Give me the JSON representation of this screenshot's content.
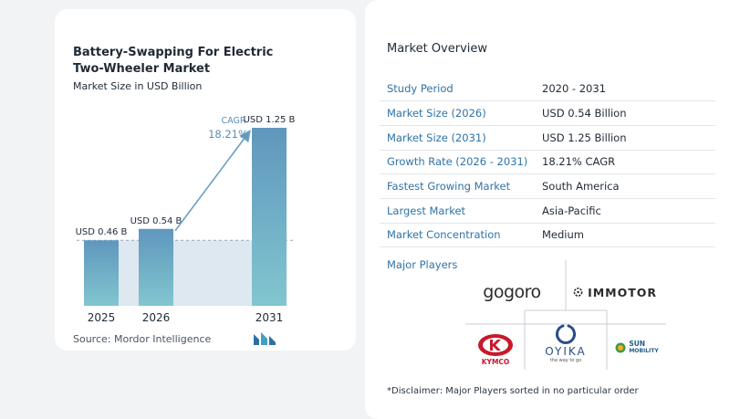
{
  "chart": {
    "title": "Battery-Swapping For Electric Two-Wheeler Market",
    "subtitle": "Market Size in USD Billion",
    "source": "Source: Mordor Intelligence",
    "cagr_label": "CAGR",
    "cagr_value": "18.21%",
    "colors": {
      "bar": "#5f97bd",
      "bar_top": "#6aa0c4",
      "bar_bottom": "#7fc3cf",
      "band": "#dde8f1",
      "arrow": "#6a9fc4",
      "cagr": "#5a8fb8"
    }
  },
  "chart_data": {
    "type": "bar",
    "categories": [
      "2025",
      "2026",
      "2031"
    ],
    "values": [
      0.46,
      0.54,
      1.25
    ],
    "data_labels": [
      "USD 0.46 B",
      "USD 0.54 B",
      "USD 1.25 B"
    ],
    "title": "Battery-Swapping For Electric Two-Wheeler Market",
    "subtitle": "Market Size in USD Billion",
    "xlabel": "",
    "ylabel": "",
    "ylim": [
      0,
      1.25
    ],
    "grid": false,
    "annotations": [
      "CAGR",
      "18.21%"
    ]
  },
  "overview": {
    "title": "Market Overview",
    "rows": [
      {
        "key": "Study Period",
        "value": "2020 - 2031"
      },
      {
        "key": "Market Size (2026)",
        "value": "USD 0.54 Billion"
      },
      {
        "key": "Market Size (2031)",
        "value": "USD 1.25 Billion"
      },
      {
        "key": "Growth Rate (2026 - 2031)",
        "value": "18.21% CAGR"
      },
      {
        "key": "Fastest Growing Market",
        "value": "South America"
      },
      {
        "key": "Largest Market",
        "value": "Asia-Pacific"
      },
      {
        "key": "Market Concentration",
        "value": "Medium"
      }
    ]
  },
  "players": {
    "title": "Major Players",
    "logos": [
      "gogoro",
      "IMMOTOR",
      "KYMCO",
      "OYIKA",
      "the way to go",
      "SUN",
      "MOBILITY"
    ],
    "disclaimer": "*Disclaimer: Major Players sorted in no particular order"
  }
}
